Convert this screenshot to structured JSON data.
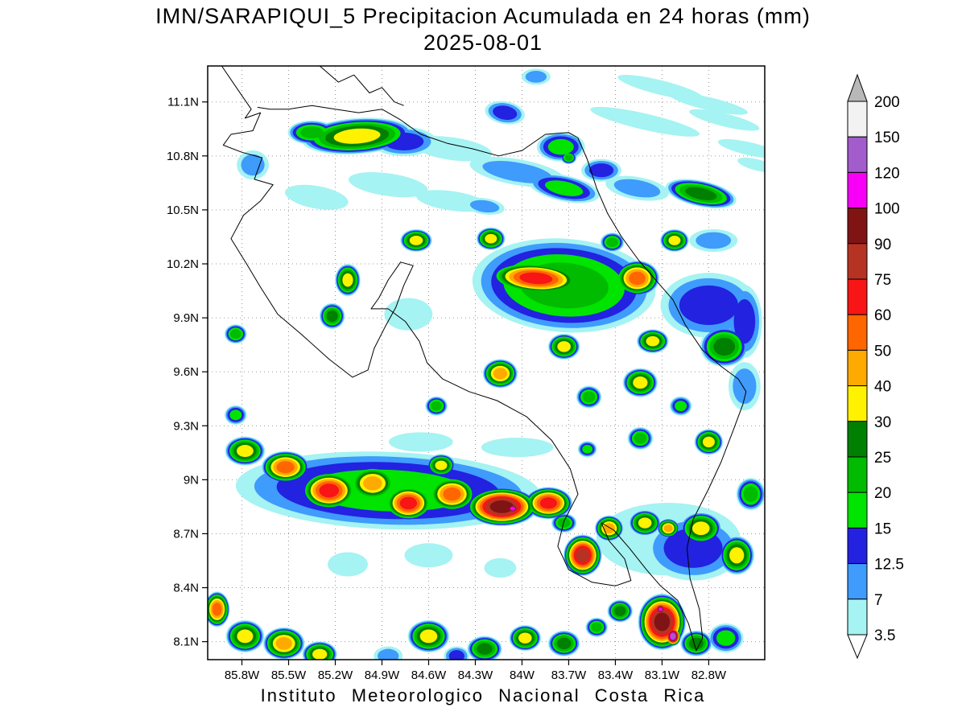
{
  "title": {
    "line1": "IMN/SARAPIQUI_5 Precipitacion Acumulada en 24 horas (mm)",
    "line2": "2025-08-01"
  },
  "footer": {
    "credit": "Instituto Meteorologico Nacional Costa Rica"
  },
  "chart_data": {
    "type": "heatmap",
    "title": "IMN/SARAPIQUI_5 Precipitacion Acumulada en 24 horas (mm)",
    "date": "2025-08-01",
    "units": "mm",
    "lon_w_range": [
      86.02,
      82.44
    ],
    "lat_n_range": [
      11.3,
      8.0
    ],
    "x_axis": {
      "tick_values": [
        85.8,
        85.5,
        85.2,
        84.9,
        84.6,
        84.3,
        84.0,
        83.7,
        83.4,
        83.1,
        82.8
      ],
      "tick_labels": [
        "85.8W",
        "85.5W",
        "85.2W",
        "84.9W",
        "84.6W",
        "84.3W",
        "84W",
        "83.7W",
        "83.4W",
        "83.1W",
        "82.8W"
      ]
    },
    "y_axis": {
      "tick_values": [
        11.1,
        10.8,
        10.5,
        10.2,
        9.9,
        9.6,
        9.3,
        9.0,
        8.7,
        8.4,
        8.1
      ],
      "tick_labels": [
        "11.1N",
        "10.8N",
        "10.5N",
        "10.2N",
        "9.9N",
        "9.6N",
        "9.3N",
        "9N",
        "8.7N",
        "8.4N",
        "8.1N"
      ]
    },
    "grid_color": "#9a9a9a",
    "coast_color": "#000000",
    "levels_mm": [
      3.5,
      7,
      12.5,
      15,
      20,
      25,
      30,
      40,
      50,
      60,
      75,
      90,
      100,
      120,
      150,
      200
    ],
    "band_colors": [
      "#a5f3f2",
      "#3f9bfc",
      "#2222e0",
      "#00e400",
      "#00bb00",
      "#008000",
      "#fff200",
      "#ffaa00",
      "#ff6600",
      "#f81515",
      "#b63324",
      "#801414",
      "#f800f8",
      "#a35ccc",
      "#f2f2f2",
      "#b8b8b8"
    ],
    "colorbar_labels": [
      "200",
      "150",
      "120",
      "100",
      "90",
      "75",
      "60",
      "50",
      "40",
      "30",
      "25",
      "20",
      "15",
      "12.5",
      "7",
      "3.5"
    ],
    "colorbar_arrow_bottom_color": "#ffffff",
    "cells_format": [
      "lon_w",
      "lat_n",
      "rx_deg",
      "ry_deg",
      "rot_deg",
      "max_mm"
    ],
    "cells": [
      [
        85.06,
        10.91,
        0.36,
        0.1,
        -4,
        40
      ],
      [
        85.35,
        10.93,
        0.155,
        0.067,
        0,
        25
      ],
      [
        84.76,
        10.88,
        0.21,
        0.081,
        0,
        15
      ],
      [
        84.45,
        10.84,
        0.26,
        0.063,
        8,
        7
      ],
      [
        84.03,
        10.71,
        0.31,
        0.072,
        10,
        12.5
      ],
      [
        83.73,
        10.62,
        0.232,
        0.072,
        12,
        20
      ],
      [
        83.26,
        10.62,
        0.206,
        0.063,
        10,
        12.5
      ],
      [
        82.85,
        10.59,
        0.232,
        0.072,
        12,
        30
      ],
      [
        83.21,
        10.99,
        0.36,
        0.045,
        13,
        7
      ],
      [
        82.8,
        11.09,
        0.257,
        0.036,
        13,
        7
      ],
      [
        82.54,
        10.84,
        0.206,
        0.036,
        13,
        7
      ],
      [
        83.91,
        10.12,
        0.3,
        0.09,
        4,
        75
      ],
      [
        83.26,
        10.12,
        0.144,
        0.099,
        0,
        60
      ],
      [
        83.73,
        10.08,
        0.59,
        0.26,
        4,
        25
      ],
      [
        82.8,
        9.97,
        0.31,
        0.18,
        0,
        15
      ],
      [
        82.7,
        9.74,
        0.155,
        0.112,
        0,
        30
      ],
      [
        83.02,
        10.33,
        0.093,
        0.063,
        0,
        40
      ],
      [
        83.42,
        10.32,
        0.077,
        0.054,
        0,
        25
      ],
      [
        84.2,
        10.34,
        0.093,
        0.063,
        0,
        40
      ],
      [
        84.68,
        10.33,
        0.103,
        0.063,
        0,
        40
      ],
      [
        85.12,
        10.11,
        0.082,
        0.09,
        0,
        40
      ],
      [
        85.22,
        9.91,
        0.082,
        0.072,
        0,
        30
      ],
      [
        85.84,
        9.81,
        0.072,
        0.054,
        0,
        25
      ],
      [
        84.14,
        9.59,
        0.113,
        0.081,
        0,
        50
      ],
      [
        83.73,
        9.74,
        0.103,
        0.072,
        0,
        40
      ],
      [
        83.57,
        9.46,
        0.082,
        0.063,
        0,
        25
      ],
      [
        83.24,
        9.54,
        0.113,
        0.081,
        0,
        40
      ],
      [
        83.24,
        9.23,
        0.082,
        0.063,
        0,
        25
      ],
      [
        82.98,
        9.41,
        0.072,
        0.054,
        0,
        20
      ],
      [
        82.8,
        9.21,
        0.093,
        0.072,
        0,
        40
      ],
      [
        82.57,
        9.52,
        0.103,
        0.134,
        0,
        12.5
      ],
      [
        85.84,
        9.36,
        0.072,
        0.054,
        0,
        20
      ],
      [
        85.78,
        9.16,
        0.129,
        0.081,
        0,
        40
      ],
      [
        85.52,
        9.07,
        0.155,
        0.09,
        0,
        60
      ],
      [
        85.24,
        8.94,
        0.18,
        0.108,
        0,
        75
      ],
      [
        84.96,
        8.98,
        0.155,
        0.099,
        0,
        50
      ],
      [
        84.73,
        8.87,
        0.155,
        0.099,
        0,
        75
      ],
      [
        84.45,
        8.92,
        0.155,
        0.099,
        0,
        60
      ],
      [
        84.13,
        8.85,
        0.232,
        0.108,
        0,
        100
      ],
      [
        84.06,
        8.84,
        0.052,
        0.036,
        0,
        120
      ],
      [
        83.83,
        8.87,
        0.155,
        0.09,
        0,
        75
      ],
      [
        84.86,
        8.94,
        0.98,
        0.215,
        2,
        20
      ],
      [
        84.52,
        9.08,
        0.093,
        0.063,
        0,
        40
      ],
      [
        83.61,
        8.58,
        0.124,
        0.116,
        0,
        90
      ],
      [
        83.44,
        8.73,
        0.093,
        0.072,
        0,
        50
      ],
      [
        83.21,
        8.76,
        0.103,
        0.072,
        0,
        40
      ],
      [
        83.06,
        8.73,
        0.072,
        0.054,
        0,
        50
      ],
      [
        82.85,
        8.73,
        0.134,
        0.09,
        0,
        40
      ],
      [
        82.62,
        8.58,
        0.113,
        0.108,
        0,
        40
      ],
      [
        82.9,
        8.62,
        0.31,
        0.18,
        0,
        15
      ],
      [
        83.73,
        8.76,
        0.082,
        0.054,
        0,
        25
      ],
      [
        85.96,
        8.28,
        0.082,
        0.099,
        0,
        60
      ],
      [
        85.78,
        8.13,
        0.124,
        0.09,
        0,
        40
      ],
      [
        85.53,
        8.09,
        0.134,
        0.09,
        0,
        50
      ],
      [
        85.3,
        8.03,
        0.113,
        0.072,
        0,
        40
      ],
      [
        84.6,
        8.13,
        0.134,
        0.09,
        0,
        40
      ],
      [
        84.24,
        8.06,
        0.113,
        0.072,
        0,
        30
      ],
      [
        83.98,
        8.12,
        0.103,
        0.072,
        0,
        40
      ],
      [
        83.73,
        8.09,
        0.103,
        0.072,
        0,
        30
      ],
      [
        83.52,
        8.18,
        0.072,
        0.054,
        0,
        25
      ],
      [
        83.37,
        8.27,
        0.082,
        0.063,
        0,
        30
      ],
      [
        83.1,
        8.21,
        0.155,
        0.157,
        0,
        100
      ],
      [
        83.03,
        8.13,
        0.052,
        0.054,
        0,
        150
      ],
      [
        83.11,
        8.28,
        0.041,
        0.036,
        0,
        120
      ],
      [
        82.88,
        8.09,
        0.103,
        0.072,
        0,
        30
      ],
      [
        82.69,
        8.12,
        0.113,
        0.081,
        0,
        20
      ],
      [
        84.86,
        8.02,
        0.093,
        0.054,
        0,
        12.5
      ],
      [
        84.42,
        8.02,
        0.082,
        0.054,
        0,
        15
      ],
      [
        84.55,
        9.41,
        0.072,
        0.054,
        0,
        25
      ],
      [
        85.32,
        10.57,
        0.206,
        0.063,
        10,
        7
      ],
      [
        84.86,
        10.64,
        0.257,
        0.063,
        8,
        7
      ],
      [
        84.45,
        10.55,
        0.232,
        0.054,
        8,
        7
      ],
      [
        84.24,
        10.52,
        0.129,
        0.045,
        8,
        12.5
      ],
      [
        83.75,
        10.85,
        0.155,
        0.081,
        0,
        20
      ],
      [
        83.49,
        10.72,
        0.129,
        0.063,
        0,
        15
      ],
      [
        83.11,
        11.18,
        0.283,
        0.04,
        14,
        7
      ],
      [
        82.7,
        11.0,
        0.232,
        0.036,
        14,
        7
      ],
      [
        82.49,
        10.75,
        0.129,
        0.031,
        14,
        7
      ],
      [
        84.73,
        9.92,
        0.155,
        0.09,
        0,
        7
      ],
      [
        82.57,
        9.88,
        0.113,
        0.202,
        0,
        15
      ],
      [
        82.77,
        10.33,
        0.155,
        0.063,
        0,
        12.5
      ],
      [
        83.16,
        9.77,
        0.103,
        0.067,
        0,
        40
      ],
      [
        83.58,
        9.17,
        0.062,
        0.045,
        0,
        20
      ],
      [
        83.06,
        8.67,
        0.463,
        0.202,
        0,
        7
      ],
      [
        85.12,
        8.53,
        0.129,
        0.067,
        0,
        7
      ],
      [
        84.6,
        8.58,
        0.155,
        0.067,
        0,
        7
      ],
      [
        84.14,
        8.51,
        0.103,
        0.054,
        0,
        7
      ],
      [
        85.73,
        10.75,
        0.103,
        0.081,
        0,
        12.5
      ],
      [
        84.11,
        11.04,
        0.129,
        0.063,
        10,
        15
      ],
      [
        83.91,
        11.24,
        0.093,
        0.045,
        0,
        12.5
      ],
      [
        83.7,
        10.79,
        0.052,
        0.036,
        0,
        25
      ],
      [
        84.03,
        9.18,
        0.232,
        0.054,
        0,
        7
      ],
      [
        84.65,
        9.21,
        0.206,
        0.054,
        0,
        7
      ],
      [
        82.53,
        8.92,
        0.093,
        0.09,
        0,
        25
      ]
    ],
    "coastlines": [
      [
        [
          85.93,
          11.3
        ],
        [
          85.82,
          11.16
        ],
        [
          85.74,
          11.06
        ],
        [
          85.78,
          11.01
        ],
        [
          85.68,
          11.04
        ],
        [
          85.73,
          10.94
        ],
        [
          85.87,
          10.92
        ],
        [
          85.92,
          10.86
        ],
        [
          85.8,
          10.82
        ],
        [
          85.67,
          10.79
        ],
        [
          85.72,
          10.67
        ],
        [
          85.6,
          10.64
        ],
        [
          85.68,
          10.55
        ],
        [
          85.79,
          10.47
        ],
        [
          85.87,
          10.34
        ],
        [
          85.77,
          10.2
        ],
        [
          85.68,
          10.07
        ],
        [
          85.57,
          9.92
        ],
        [
          85.42,
          9.81
        ],
        [
          85.24,
          9.67
        ],
        [
          85.09,
          9.57
        ],
        [
          84.99,
          9.61
        ],
        [
          84.95,
          9.73
        ],
        [
          84.88,
          9.85
        ],
        [
          84.81,
          9.96
        ],
        [
          84.76,
          10.08
        ],
        [
          84.7,
          10.19
        ],
        [
          84.78,
          10.21
        ],
        [
          84.86,
          10.11
        ],
        [
          84.92,
          10.01
        ],
        [
          84.97,
          9.95
        ],
        [
          84.86,
          9.95
        ],
        [
          84.75,
          9.88
        ],
        [
          84.66,
          9.77
        ],
        [
          84.61,
          9.65
        ],
        [
          84.51,
          9.56
        ],
        [
          84.34,
          9.49
        ],
        [
          84.16,
          9.44
        ],
        [
          83.97,
          9.35
        ],
        [
          83.81,
          9.22
        ],
        [
          83.69,
          9.06
        ],
        [
          83.64,
          8.92
        ],
        [
          83.73,
          8.77
        ],
        [
          83.77,
          8.63
        ],
        [
          83.7,
          8.5
        ],
        [
          83.55,
          8.43
        ],
        [
          83.4,
          8.41
        ],
        [
          83.3,
          8.44
        ],
        [
          83.34,
          8.56
        ],
        [
          83.44,
          8.66
        ],
        [
          83.49,
          8.76
        ],
        [
          83.41,
          8.72
        ],
        [
          83.31,
          8.62
        ],
        [
          83.2,
          8.5
        ],
        [
          83.11,
          8.41
        ],
        [
          83.0,
          8.33
        ],
        [
          82.93,
          8.2
        ],
        [
          82.88,
          8.05
        ],
        [
          82.84,
          8.12
        ],
        [
          82.86,
          8.28
        ],
        [
          82.92,
          8.45
        ],
        [
          82.94,
          8.62
        ],
        [
          82.9,
          8.78
        ],
        [
          82.8,
          8.95
        ],
        [
          82.72,
          9.1
        ],
        [
          82.64,
          9.28
        ],
        [
          82.58,
          9.42
        ],
        [
          82.56,
          9.49
        ]
      ],
      [
        [
          82.56,
          9.49
        ],
        [
          82.61,
          9.56
        ],
        [
          82.72,
          9.63
        ],
        [
          82.84,
          9.72
        ],
        [
          82.95,
          9.86
        ],
        [
          83.03,
          10.0
        ],
        [
          83.13,
          10.1
        ],
        [
          83.25,
          10.22
        ],
        [
          83.36,
          10.35
        ],
        [
          83.45,
          10.48
        ],
        [
          83.52,
          10.62
        ],
        [
          83.58,
          10.78
        ],
        [
          83.64,
          10.9
        ],
        [
          83.7,
          10.93
        ],
        [
          83.85,
          10.92
        ],
        [
          84.0,
          10.83
        ],
        [
          84.15,
          10.8
        ],
        [
          84.32,
          10.84
        ],
        [
          84.48,
          10.87
        ],
        [
          84.65,
          10.92
        ],
        [
          84.78,
          11.0
        ],
        [
          84.9,
          11.06
        ],
        [
          85.05,
          11.04
        ],
        [
          85.2,
          11.06
        ],
        [
          85.35,
          11.08
        ],
        [
          85.5,
          11.06
        ],
        [
          85.62,
          11.06
        ],
        [
          85.7,
          11.07
        ]
      ],
      [
        [
          85.3,
          11.3
        ],
        [
          85.18,
          11.21
        ],
        [
          85.08,
          11.25
        ],
        [
          84.98,
          11.15
        ],
        [
          84.9,
          11.18
        ],
        [
          84.82,
          11.1
        ],
        [
          84.76,
          11.08
        ]
      ]
    ]
  }
}
